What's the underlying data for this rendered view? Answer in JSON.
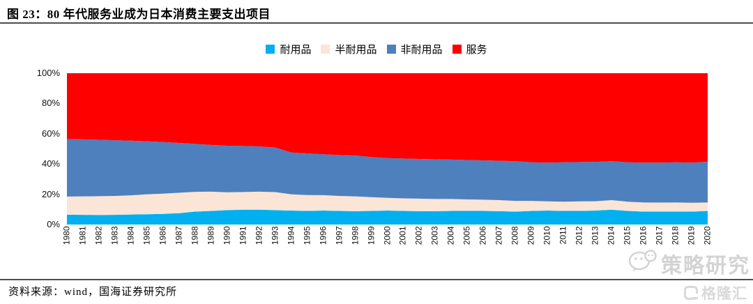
{
  "header": {
    "title": "图 23：80 年代服务业成为日本消费主要支出项目"
  },
  "footer": {
    "source": "资料来源：wind，国海证券研究所"
  },
  "watermarks": {
    "strategy_text": "策略研究",
    "strategy_icon": "wechat-icon",
    "gelonghui_text": "格隆汇",
    "gelonghui_icon": "gelonghui-g-icon"
  },
  "colors": {
    "durables": "#00B0F0",
    "semi_durables": "#FBE5D6",
    "non_durables": "#4E80BD",
    "services": "#FF0000",
    "rule": "#4d4d4d",
    "watermark": "#d3d3d3"
  },
  "chart_data": {
    "type": "area",
    "stacked": true,
    "stacking": "percent",
    "title": "",
    "xlabel": "",
    "ylabel": "",
    "ylim": [
      0,
      100
    ],
    "grid": false,
    "legend_position": "top",
    "yticks": [
      "0%",
      "20%",
      "40%",
      "60%",
      "80%",
      "100%"
    ],
    "categories": [
      "1980",
      "1981",
      "1982",
      "1983",
      "1984",
      "1985",
      "1986",
      "1987",
      "1988",
      "1989",
      "1990",
      "1991",
      "1992",
      "1993",
      "1994",
      "1995",
      "1996",
      "1997",
      "1998",
      "1999",
      "2000",
      "2001",
      "2002",
      "2003",
      "2004",
      "2005",
      "2006",
      "2007",
      "2008",
      "2009",
      "2010",
      "2011",
      "2012",
      "2013",
      "2014",
      "2015",
      "2016",
      "2017",
      "2018",
      "2019",
      "2020"
    ],
    "series": [
      {
        "id": "durables",
        "name": "耐用品",
        "color": "#00B0F0",
        "values": [
          6.5,
          6.4,
          6.3,
          6.4,
          6.6,
          6.8,
          7.0,
          7.5,
          8.5,
          9.0,
          9.5,
          9.8,
          9.8,
          9.5,
          9.2,
          9.0,
          9.2,
          9.0,
          8.8,
          9.0,
          9.2,
          9.0,
          8.8,
          8.8,
          9.0,
          9.0,
          9.0,
          8.8,
          8.5,
          9.0,
          9.2,
          9.0,
          9.0,
          9.2,
          9.8,
          9.0,
          8.5,
          8.5,
          8.5,
          8.5,
          9.0
        ]
      },
      {
        "id": "semi_durables",
        "name": "半耐用品",
        "color": "#FBE5D6",
        "values": [
          12.0,
          12.2,
          12.4,
          12.5,
          12.7,
          13.2,
          13.4,
          13.5,
          13.1,
          12.7,
          11.8,
          11.7,
          11.9,
          11.9,
          10.8,
          10.5,
          10.2,
          9.9,
          9.8,
          9.1,
          8.4,
          8.3,
          8.3,
          8.1,
          7.9,
          7.6,
          7.4,
          7.3,
          7.1,
          6.6,
          6.1,
          6.1,
          6.3,
          6.2,
          6.3,
          6.1,
          6.1,
          6.0,
          6.1,
          5.9,
          5.6
        ]
      },
      {
        "id": "non_durables",
        "name": "非耐用品",
        "color": "#4E80BD",
        "values": [
          38.0,
          37.7,
          37.3,
          36.8,
          36.1,
          35.0,
          34.1,
          32.9,
          31.7,
          30.9,
          30.8,
          30.4,
          29.9,
          29.5,
          27.6,
          27.5,
          27.0,
          27.0,
          27.0,
          26.5,
          26.3,
          26.3,
          26.2,
          26.2,
          26.0,
          26.0,
          26.0,
          26.0,
          26.3,
          25.5,
          25.6,
          26.0,
          26.0,
          26.0,
          25.8,
          26.0,
          26.3,
          26.4,
          26.5,
          26.5,
          26.9
        ]
      },
      {
        "id": "services",
        "name": "服务",
        "color": "#FF0000",
        "values": [
          43.5,
          43.7,
          44.0,
          44.3,
          44.6,
          45.0,
          45.5,
          46.1,
          46.7,
          47.4,
          47.9,
          48.1,
          48.4,
          49.1,
          52.4,
          53.0,
          53.6,
          54.1,
          54.4,
          55.4,
          56.1,
          56.4,
          56.7,
          56.9,
          57.1,
          57.4,
          57.6,
          57.9,
          58.1,
          58.9,
          59.1,
          58.9,
          58.7,
          58.6,
          58.1,
          58.9,
          59.1,
          59.1,
          58.9,
          59.1,
          58.5
        ]
      }
    ]
  }
}
